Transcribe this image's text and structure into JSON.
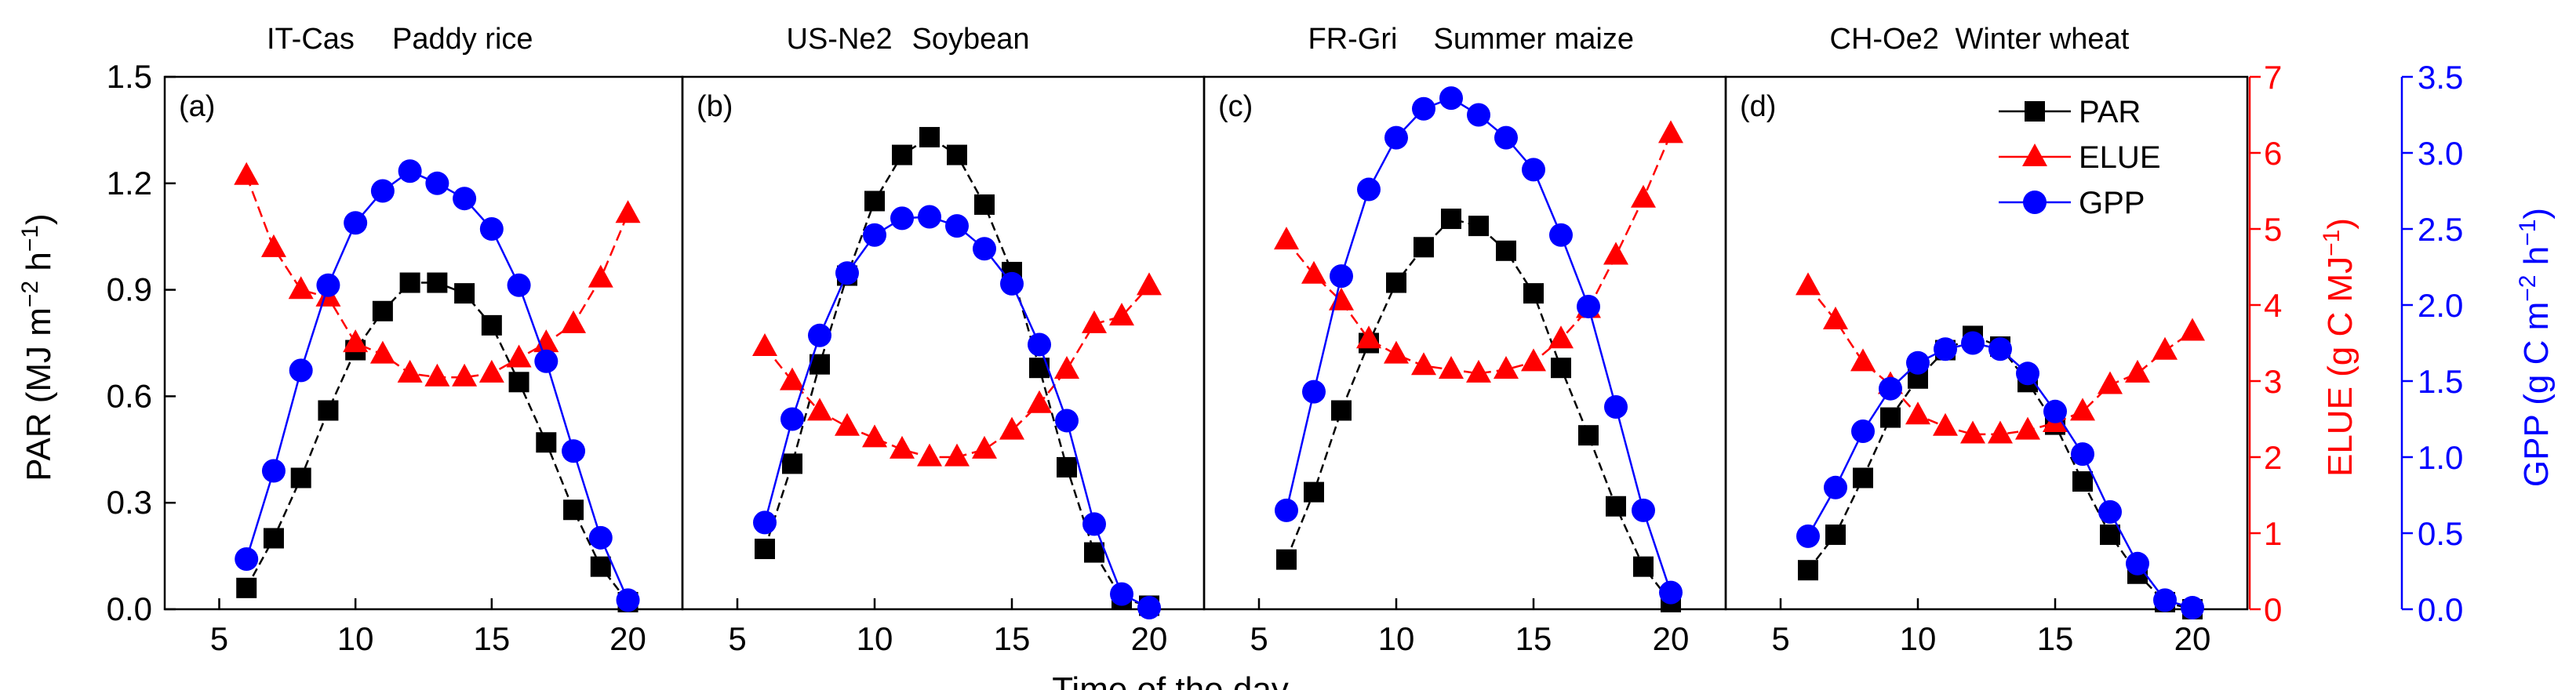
{
  "chart_data": {
    "type": "line",
    "x_axis": {
      "label": "Time of the day",
      "ticks": [
        "5",
        "10",
        "15",
        "20"
      ],
      "range": [
        3,
        22
      ]
    },
    "y_axes": {
      "par": {
        "label_main": "PAR (MJ m",
        "label_sup1": "−2",
        "label_mid": " h",
        "label_sup2": "−1",
        "label_end": ")",
        "range": [
          0,
          1.5
        ],
        "ticks": [
          "0.0",
          "0.3",
          "0.6",
          "0.9",
          "1.2",
          "1.5"
        ],
        "color": "#000000"
      },
      "elue": {
        "label_main": "ELUE (g C MJ",
        "label_sup1": "−1",
        "label_end": ")",
        "range": [
          0,
          7
        ],
        "ticks": [
          "0",
          "1",
          "2",
          "3",
          "4",
          "5",
          "6",
          "7"
        ],
        "color": "#ff0000"
      },
      "gpp": {
        "label_main": "GPP (g C m",
        "label_sup1": "−2",
        "label_mid": " h",
        "label_sup2": "−1",
        "label_end": ")",
        "range": [
          0,
          3.5
        ],
        "ticks": [
          "0.0",
          "0.5",
          "1.0",
          "1.5",
          "2.0",
          "2.5",
          "3.0",
          "3.5"
        ],
        "color": "#0000ff"
      }
    },
    "legend": {
      "position": "top-right of panel (d)",
      "entries": [
        {
          "name": "PAR",
          "color": "#000000",
          "marker": "square"
        },
        {
          "name": "ELUE",
          "color": "#ff0000",
          "marker": "triangle"
        },
        {
          "name": "GPP",
          "color": "#0000ff",
          "marker": "circle"
        }
      ]
    },
    "panels": [
      {
        "label": "(a)",
        "site": "IT-Cas",
        "crop": "Paddy rice",
        "par": {
          "x": [
            6,
            7,
            8,
            9,
            10,
            11,
            12,
            13,
            14,
            15,
            16,
            17,
            18,
            19,
            20
          ],
          "y": [
            0.06,
            0.2,
            0.37,
            0.56,
            0.73,
            0.84,
            0.92,
            0.92,
            0.89,
            0.8,
            0.64,
            0.47,
            0.28,
            0.12,
            0.02
          ]
        },
        "elue": {
          "x": [
            6,
            7,
            8,
            9,
            10,
            11,
            12,
            13,
            14,
            15,
            16,
            17,
            18,
            19,
            20
          ],
          "y": [
            5.7,
            4.75,
            4.2,
            4.1,
            3.5,
            3.35,
            3.1,
            3.05,
            3.05,
            3.1,
            3.3,
            3.5,
            3.75,
            4.35,
            5.2
          ]
        },
        "gpp": {
          "x": [
            6,
            7,
            8,
            9,
            10,
            11,
            12,
            13,
            14,
            15,
            16,
            17,
            18,
            19,
            20
          ],
          "y": [
            0.33,
            0.91,
            1.57,
            2.13,
            2.54,
            2.75,
            2.88,
            2.8,
            2.7,
            2.5,
            2.13,
            1.63,
            1.04,
            0.47,
            0.06
          ]
        }
      },
      {
        "label": "(b)",
        "site": "US-Ne2",
        "crop": "Soybean",
        "par": {
          "x": [
            6,
            7,
            8,
            9,
            10,
            11,
            12,
            13,
            14,
            15,
            16,
            17,
            18,
            19,
            20
          ],
          "y": [
            0.17,
            0.41,
            0.69,
            0.94,
            1.15,
            1.28,
            1.33,
            1.28,
            1.14,
            0.95,
            0.68,
            0.4,
            0.16,
            0.03,
            0.01
          ]
        },
        "elue": {
          "x": [
            6,
            7,
            8,
            9,
            10,
            11,
            12,
            13,
            14,
            15,
            16,
            17,
            18,
            19,
            20
          ],
          "y": [
            3.45,
            3.0,
            2.6,
            2.4,
            2.25,
            2.1,
            2.0,
            2.0,
            2.1,
            2.35,
            2.7,
            3.15,
            3.75,
            3.85,
            4.25
          ]
        },
        "gpp": {
          "x": [
            6,
            7,
            8,
            9,
            10,
            11,
            12,
            13,
            14,
            15,
            16,
            17,
            18,
            19,
            20
          ],
          "y": [
            0.57,
            1.25,
            1.8,
            2.21,
            2.46,
            2.57,
            2.58,
            2.52,
            2.37,
            2.14,
            1.74,
            1.24,
            0.56,
            0.1,
            0.01
          ]
        }
      },
      {
        "label": "(c)",
        "site": "FR-Gri",
        "crop": "Summer maize",
        "par": {
          "x": [
            6,
            7,
            8,
            9,
            10,
            11,
            12,
            13,
            14,
            15,
            16,
            17,
            18,
            19,
            20
          ],
          "y": [
            0.14,
            0.33,
            0.56,
            0.75,
            0.92,
            1.02,
            1.1,
            1.08,
            1.01,
            0.89,
            0.68,
            0.49,
            0.29,
            0.12,
            0.02
          ]
        },
        "elue": {
          "x": [
            6,
            7,
            8,
            9,
            10,
            11,
            12,
            13,
            14,
            15,
            16,
            17,
            18,
            19,
            20
          ],
          "y": [
            4.85,
            4.4,
            4.05,
            3.55,
            3.35,
            3.2,
            3.15,
            3.1,
            3.15,
            3.25,
            3.55,
            3.95,
            4.65,
            5.4,
            6.25
          ]
        },
        "gpp": {
          "x": [
            6,
            7,
            8,
            9,
            10,
            11,
            12,
            13,
            14,
            15,
            16,
            17,
            18,
            19,
            20
          ],
          "y": [
            0.65,
            1.43,
            2.19,
            2.76,
            3.1,
            3.29,
            3.36,
            3.25,
            3.1,
            2.89,
            2.46,
            1.99,
            1.33,
            0.65,
            0.11
          ]
        }
      },
      {
        "label": "(d)",
        "site": "CH-Oe2",
        "crop": "Winter wheat",
        "par": {
          "x": [
            6,
            7,
            8,
            9,
            10,
            11,
            12,
            13,
            14,
            15,
            16,
            17,
            18,
            19,
            20
          ],
          "y": [
            0.11,
            0.21,
            0.37,
            0.54,
            0.65,
            0.73,
            0.77,
            0.74,
            0.64,
            0.52,
            0.36,
            0.21,
            0.1,
            0.02,
            0.0
          ]
        },
        "elue": {
          "x": [
            6,
            7,
            8,
            9,
            10,
            11,
            12,
            13,
            14,
            15,
            16,
            17,
            18,
            19,
            20
          ],
          "y": [
            4.25,
            3.8,
            3.25,
            2.95,
            2.55,
            2.4,
            2.3,
            2.3,
            2.35,
            2.45,
            2.6,
            2.95,
            3.1,
            3.4,
            3.65
          ]
        },
        "gpp": {
          "x": [
            6,
            7,
            8,
            9,
            10,
            11,
            12,
            13,
            14,
            15,
            16,
            17,
            18,
            19,
            20
          ],
          "y": [
            0.48,
            0.8,
            1.17,
            1.45,
            1.62,
            1.71,
            1.75,
            1.71,
            1.55,
            1.3,
            1.02,
            0.64,
            0.3,
            0.06,
            0.01
          ]
        }
      }
    ]
  }
}
